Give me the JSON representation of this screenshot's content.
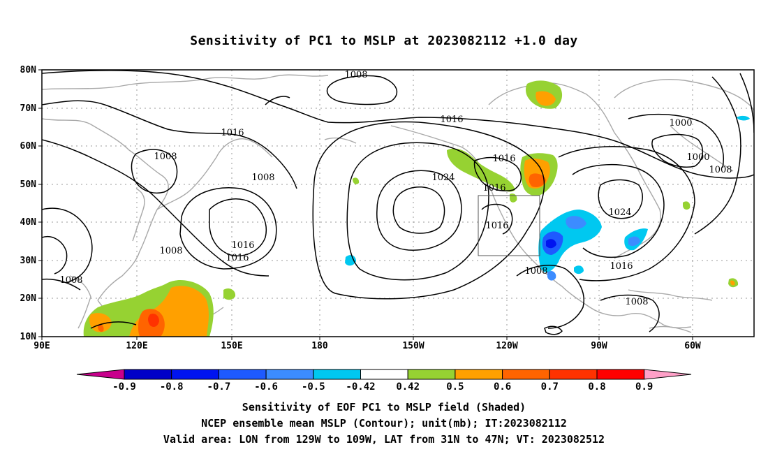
{
  "title": "Sensitivity of PC1 to MSLP at 2023082112 +1.0 day",
  "axes": {
    "lat_labels": [
      "80N",
      "70N",
      "60N",
      "50N",
      "40N",
      "30N",
      "20N",
      "10N"
    ],
    "lon_labels": [
      "90E",
      "120E",
      "150E",
      "180",
      "150W",
      "120W",
      "90W",
      "60W"
    ]
  },
  "contours": {
    "unit": "mb",
    "labels": [
      "1008",
      "1016",
      "1000",
      "1000",
      "1008",
      "1016",
      "1024",
      "1016",
      "1016",
      "1024",
      "1016",
      "1008",
      "1016",
      "1016",
      "1008",
      "1008",
      "1016",
      "1008",
      "1008",
      "1008"
    ]
  },
  "valid_area": {
    "lon_from": "129W",
    "lon_to": "109W",
    "lat_from": "31N",
    "lat_to": "47N"
  },
  "colorbar": {
    "labels": [
      "-0.9",
      "-0.8",
      "-0.7",
      "-0.6",
      "-0.5",
      "-0.42",
      "0.42",
      "0.5",
      "0.6",
      "0.7",
      "0.8",
      "0.9"
    ],
    "colors": [
      "#c8008c",
      "#0000c8",
      "#0014f0",
      "#1e5aff",
      "#3c8cff",
      "#00c8f0",
      "#ffffff",
      "#96d232",
      "#ffa000",
      "#ff6400",
      "#ff3200",
      "#ff0000",
      "#ffa0c8"
    ]
  },
  "captions": [
    "Sensitivity of EOF PC1 to MSLP field (Shaded)",
    "NCEP ensemble mean MSLP (Contour); unit(mb); IT:2023082112",
    "Valid area: LON from 129W to 109W, LAT from 31N to 47N; VT: 2023082512"
  ]
}
